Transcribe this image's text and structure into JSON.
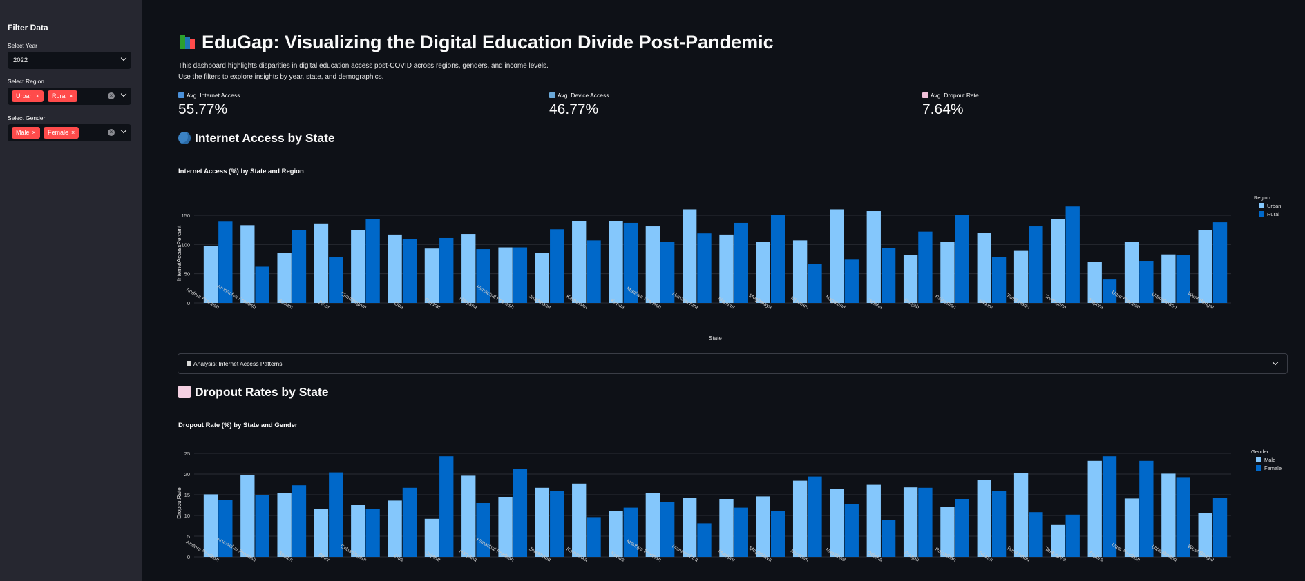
{
  "sidebar": {
    "title": "Filter Data",
    "year_label": "Select Year",
    "year_value": "2022",
    "region_label": "Select Region",
    "region_tags": [
      "Urban",
      "Rural"
    ],
    "gender_label": "Select Gender",
    "gender_tags": [
      "Male",
      "Female"
    ]
  },
  "header": {
    "title": "EduGap: Visualizing the Digital Education Divide Post-Pandemic",
    "desc1": "This dashboard highlights disparities in digital education access post-COVID across regions, genders, and income levels.",
    "desc2": "Use the filters to explore insights by year, state, and demographics."
  },
  "metrics": [
    {
      "label": "Avg. Internet Access",
      "value": "55.77%",
      "icon": "bar-chart-icon"
    },
    {
      "label": "Avg. Device Access",
      "value": "46.77%",
      "icon": "laptop-icon"
    },
    {
      "label": "Avg. Dropout Rate",
      "value": "7.64%",
      "icon": "chart-down-icon"
    }
  ],
  "sections": {
    "internet": "Internet Access by State",
    "dropout": "Dropout Rates by State"
  },
  "expander": {
    "label": "Analysis: Internet Access Patterns"
  },
  "colors": {
    "light": "#84c7fc",
    "dark": "#0068c9",
    "accent": "#ff4b4b",
    "bg": "#0e1117",
    "sidebar": "#262730"
  },
  "chart_data": [
    {
      "type": "bar",
      "title": "Internet Access (%) by State and Region",
      "xlabel": "State",
      "ylabel": "InternetAccessPercent",
      "ylim": [
        0,
        170
      ],
      "yticks": [
        0,
        50,
        100,
        150
      ],
      "legend_title": "Region",
      "legend_position": "top-right",
      "categories": [
        "Andhra Pradesh",
        "Arunachal Pradesh",
        "Assam",
        "Bihar",
        "Chhattisgarh",
        "Goa",
        "Gujarat",
        "Haryana",
        "Himachal Pradesh",
        "Jharkhand",
        "Karnataka",
        "Kerala",
        "Madhya Pradesh",
        "Maharashtra",
        "Manipur",
        "Meghalaya",
        "Mizoram",
        "Nagaland",
        "Odisha",
        "Punjab",
        "Rajasthan",
        "Sikkim",
        "Tamil Nadu",
        "Telangana",
        "Tripura",
        "Uttar Pradesh",
        "Uttarakhand",
        "West Bengal"
      ],
      "series": [
        {
          "name": "Urban",
          "values": [
            97,
            133,
            85,
            136,
            125,
            117,
            93,
            118,
            95,
            85,
            140,
            140,
            131,
            160,
            117,
            105,
            107,
            160,
            157,
            82,
            105,
            120,
            89,
            143,
            70,
            105,
            83,
            125
          ]
        },
        {
          "name": "Rural",
          "values": [
            139,
            62,
            125,
            78,
            143,
            109,
            111,
            92,
            95,
            126,
            107,
            137,
            104,
            119,
            137,
            151,
            67,
            74,
            94,
            122,
            150,
            78,
            131,
            165,
            40,
            72,
            82,
            138
          ]
        }
      ]
    },
    {
      "type": "bar",
      "title": "Dropout Rate (%) by State and Gender",
      "xlabel": "",
      "ylabel": "DropoutRate",
      "ylim": [
        0,
        26
      ],
      "yticks": [
        0,
        5,
        10,
        15,
        20,
        25
      ],
      "legend_title": "Gender",
      "legend_position": "top-right",
      "categories": [
        "Andhra Pradesh",
        "Arunachal Pradesh",
        "Assam",
        "Bihar",
        "Chhattisgarh",
        "Goa",
        "Gujarat",
        "Haryana",
        "Himachal Pradesh",
        "Jharkhand",
        "Karnataka",
        "Kerala",
        "Madhya Pradesh",
        "Maharashtra",
        "Manipur",
        "Meghalaya",
        "Mizoram",
        "Nagaland",
        "Odisha",
        "Punjab",
        "Rajasthan",
        "Sikkim",
        "Tamil Nadu",
        "Telangana",
        "Tripura",
        "Uttar Pradesh",
        "Uttarakhand",
        "West Bengal"
      ],
      "series": [
        {
          "name": "Male",
          "values": [
            15.1,
            19.8,
            15.5,
            11.6,
            12.5,
            13.6,
            9.2,
            19.6,
            14.5,
            16.7,
            17.7,
            11.0,
            15.4,
            14.2,
            14.0,
            14.6,
            18.4,
            16.5,
            17.4,
            16.8,
            12.0,
            18.5,
            20.3,
            7.7,
            23.2,
            14.1,
            20.1,
            10.5
          ]
        },
        {
          "name": "Female",
          "values": [
            13.8,
            15.0,
            17.3,
            20.4,
            11.5,
            16.7,
            24.3,
            13.0,
            21.3,
            16.0,
            9.6,
            11.9,
            13.3,
            8.1,
            11.9,
            11.1,
            19.4,
            12.8,
            9.0,
            16.7,
            14.0,
            15.9,
            10.8,
            10.2,
            24.3,
            23.2,
            19.1,
            14.2
          ]
        }
      ]
    }
  ]
}
